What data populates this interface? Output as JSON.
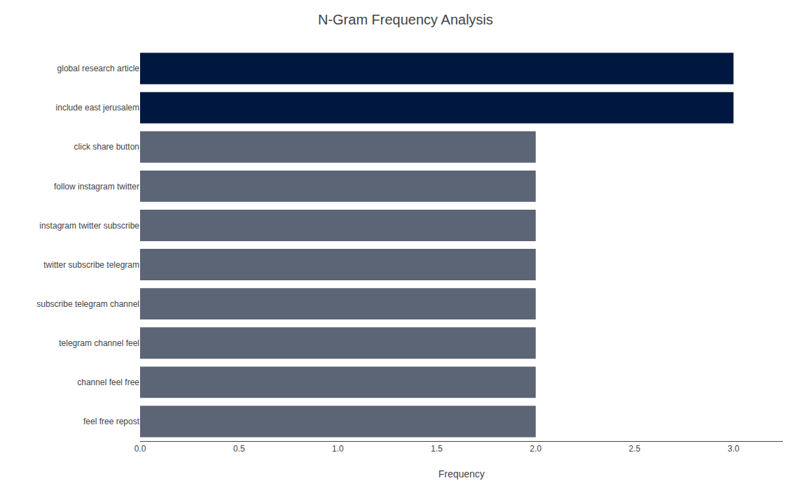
{
  "chart_data": {
    "type": "bar",
    "orientation": "horizontal",
    "title": "N-Gram Frequency Analysis",
    "xlabel": "Frequency",
    "categories": [
      "feel free repost",
      "channel feel free",
      "telegram channel feel",
      "subscribe telegram channel",
      "twitter subscribe telegram",
      "instagram twitter subscribe",
      "follow instagram twitter",
      "click share button",
      "include east jerusalem",
      "global research article"
    ],
    "values": [
      2,
      2,
      2,
      2,
      2,
      2,
      2,
      2,
      3,
      3
    ],
    "colors": [
      "#5b6575",
      "#5b6575",
      "#5b6575",
      "#5b6575",
      "#5b6575",
      "#5b6575",
      "#5b6575",
      "#5b6575",
      "#001840",
      "#001840"
    ],
    "xlim": [
      0,
      3.25
    ],
    "xticks": [
      {
        "value": 0.0,
        "label": "0.0"
      },
      {
        "value": 0.5,
        "label": "0.5"
      },
      {
        "value": 1.0,
        "label": "1.0"
      },
      {
        "value": 1.5,
        "label": "1.5"
      },
      {
        "value": 2.0,
        "label": "2.0"
      },
      {
        "value": 2.5,
        "label": "2.5"
      },
      {
        "value": 3.0,
        "label": "3.0"
      }
    ],
    "grid": false
  }
}
